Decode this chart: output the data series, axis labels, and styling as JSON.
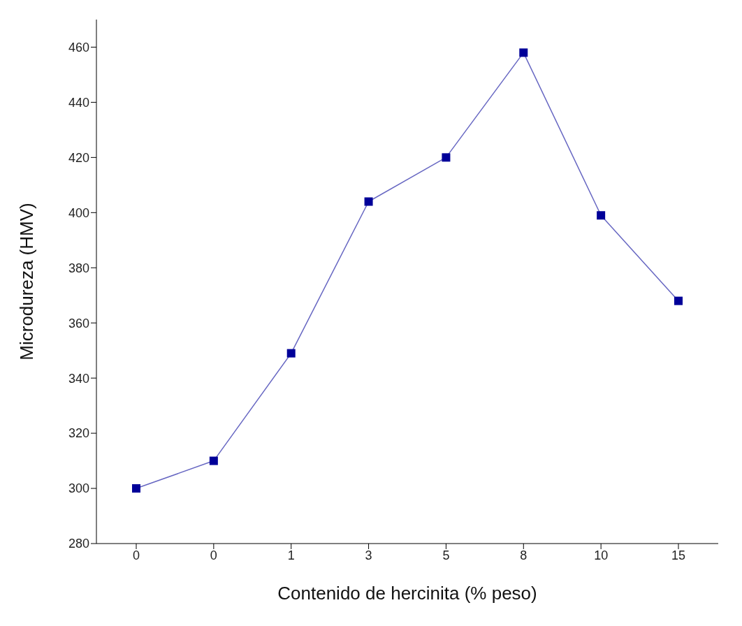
{
  "chart_data": {
    "type": "line",
    "xlabel": "Contenido de hercinita (% peso)",
    "ylabel": "Microdureza (HMV)",
    "categories": [
      "0",
      "0",
      "1",
      "3",
      "5",
      "8",
      "10",
      "15"
    ],
    "series": [
      {
        "color": "#000099",
        "values": [
          300,
          310,
          349,
          404,
          420,
          458,
          399,
          368
        ]
      }
    ],
    "ylim": [
      280,
      470
    ],
    "yticks": [
      280,
      300,
      320,
      340,
      360,
      380,
      400,
      420,
      440,
      460
    ],
    "marker": "square",
    "line_style": "solid",
    "grid": false,
    "legend": false
  }
}
